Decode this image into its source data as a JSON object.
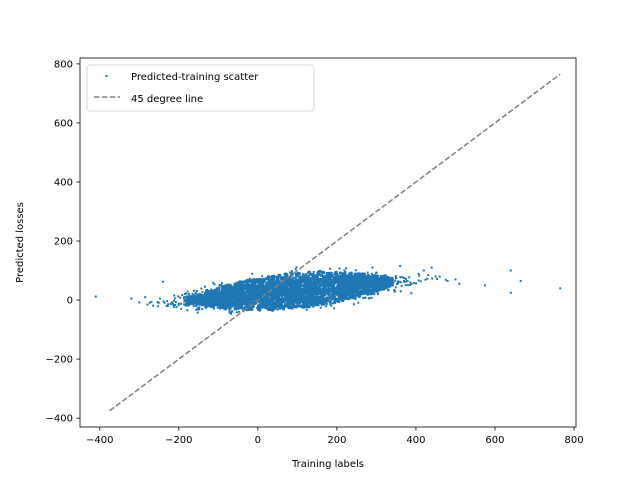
{
  "chart_data": {
    "type": "scatter",
    "title": "",
    "xlabel": "Training labels",
    "ylabel": "Predicted losses",
    "xlim": [
      -450,
      805
    ],
    "ylim": [
      -430,
      820
    ],
    "xticks": [
      -400,
      -200,
      0,
      200,
      400,
      600,
      800
    ],
    "yticks": [
      -400,
      -200,
      0,
      200,
      400,
      600,
      800
    ],
    "grid": false,
    "legend_position": "top-left",
    "series": [
      {
        "name": "Predicted-training scatter",
        "kind": "scatter",
        "color": "#1f77b4",
        "cloud": {
          "x_range": [
            -320,
            520
          ],
          "core_x_range": [
            -220,
            380
          ],
          "y_center_at_x0": 20,
          "y_slope": 0.12,
          "y_spread": 45
        },
        "points": [
          {
            "x": -410,
            "y": 12
          },
          {
            "x": -320,
            "y": 5
          },
          {
            "x": -300,
            "y": -8
          },
          {
            "x": -285,
            "y": 10
          },
          {
            "x": -240,
            "y": 62
          },
          {
            "x": -215,
            "y": -12
          },
          {
            "x": 360,
            "y": 115
          },
          {
            "x": 420,
            "y": 100
          },
          {
            "x": 440,
            "y": 110
          },
          {
            "x": 450,
            "y": 80
          },
          {
            "x": 480,
            "y": 65
          },
          {
            "x": 500,
            "y": 70
          },
          {
            "x": 510,
            "y": 55
          },
          {
            "x": 575,
            "y": 50
          },
          {
            "x": 640,
            "y": 100
          },
          {
            "x": 640,
            "y": 25
          },
          {
            "x": 665,
            "y": 65
          },
          {
            "x": 765,
            "y": 40
          }
        ]
      },
      {
        "name": "45 degree line",
        "kind": "line",
        "style": "dashed",
        "color": "#808080",
        "x": [
          -375,
          765
        ],
        "y": [
          -375,
          765
        ]
      }
    ]
  }
}
